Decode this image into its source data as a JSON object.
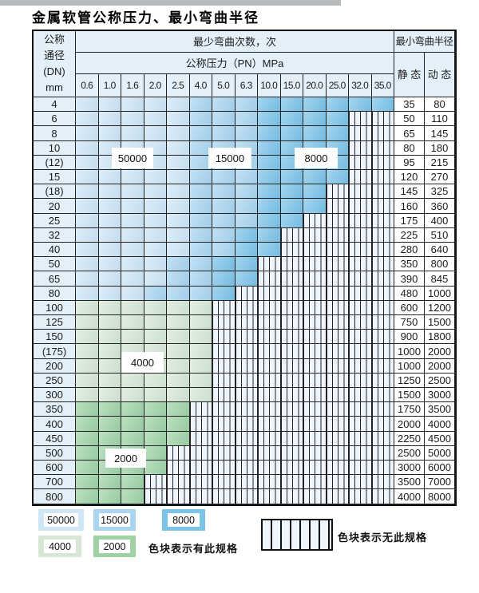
{
  "title": "金属软管公称压力、最小弯曲半径",
  "header": {
    "dn_lines": [
      "公称",
      "通径",
      "(DN)",
      "mm"
    ],
    "bend_cycles": "最少弯曲次数，次",
    "pressure": "公称压力（PN）MPa",
    "min_radius": "最小弯曲半径",
    "static_label": "静 态",
    "dynamic_label": "动 态",
    "pressure_columns": [
      "0.6",
      "1.0",
      "1.6",
      "2.0",
      "2.5",
      "4.0",
      "5.0",
      "6.3",
      "10.0",
      "15.0",
      "20.0",
      "25.0",
      "32.0",
      "35.0"
    ]
  },
  "zone_legend_map": {
    "A": "50000",
    "B": "15000",
    "C": "8000",
    "D": "4000",
    "E": "2000",
    "X": "无此规格"
  },
  "overlays": {
    "b50000": "50000",
    "b15000": "15000",
    "b8000": "8000",
    "b4000": "4000",
    "b2000": "2000"
  },
  "table": {
    "rows": [
      {
        "dn": "4",
        "cells": "AAAAABBBCCCCCC",
        "static": "35",
        "dynamic": "80"
      },
      {
        "dn": "6",
        "cells": "AAAAABBBCCCCXX",
        "static": "50",
        "dynamic": "110"
      },
      {
        "dn": "8",
        "cells": "AAAAABBBCCCCXX",
        "static": "65",
        "dynamic": "145"
      },
      {
        "dn": "10",
        "cells": "AAAAABBBCCCCXX",
        "static": "80",
        "dynamic": "180"
      },
      {
        "dn": "(12)",
        "cells": "AAAAABBBCCCCXX",
        "static": "95",
        "dynamic": "215"
      },
      {
        "dn": "15",
        "cells": "AAAAABBBCCCCXX",
        "static": "120",
        "dynamic": "270"
      },
      {
        "dn": "(18)",
        "cells": "AAAAABBBCCCXXX",
        "static": "145",
        "dynamic": "325"
      },
      {
        "dn": "20",
        "cells": "AAAAABBBCCCXXX",
        "static": "160",
        "dynamic": "360"
      },
      {
        "dn": "25",
        "cells": "AAAAABBBCCXXXX",
        "static": "175",
        "dynamic": "400"
      },
      {
        "dn": "32",
        "cells": "AAAAABBCCXXXXX",
        "static": "225",
        "dynamic": "510"
      },
      {
        "dn": "40",
        "cells": "AAAAABBCCXXXXX",
        "static": "280",
        "dynamic": "640"
      },
      {
        "dn": "50",
        "cells": "AAAABBCCXXXXXX",
        "static": "350",
        "dynamic": "800"
      },
      {
        "dn": "65",
        "cells": "AAAABBCCXXXXXX",
        "static": "390",
        "dynamic": "845"
      },
      {
        "dn": "80",
        "cells": "AAABBBCXXXXXXX",
        "static": "480",
        "dynamic": "1000"
      },
      {
        "dn": "100",
        "cells": "DDDDDDXXXXXXXX",
        "static": "600",
        "dynamic": "1200"
      },
      {
        "dn": "125",
        "cells": "DDDDDDXXXXXXXX",
        "static": "750",
        "dynamic": "1500"
      },
      {
        "dn": "150",
        "cells": "DDDDDDXXXXXXXX",
        "static": "900",
        "dynamic": "1800"
      },
      {
        "dn": "(175)",
        "cells": "DDDDDDXXXXXXXX",
        "static": "1000",
        "dynamic": "2000"
      },
      {
        "dn": "200",
        "cells": "DDDDDDXXXXXXXX",
        "static": "1000",
        "dynamic": "2000"
      },
      {
        "dn": "250",
        "cells": "DDDDDDXXXXXXXX",
        "static": "1250",
        "dynamic": "2500"
      },
      {
        "dn": "300",
        "cells": "DDDDDDXXXXXXXX",
        "static": "1500",
        "dynamic": "3000"
      },
      {
        "dn": "350",
        "cells": "EEEEEXXXXXXXXX",
        "static": "1750",
        "dynamic": "3500"
      },
      {
        "dn": "400",
        "cells": "EEEEEXXXXXXXXX",
        "static": "2000",
        "dynamic": "4000"
      },
      {
        "dn": "450",
        "cells": "EEEEEXXXXXXXXX",
        "static": "2250",
        "dynamic": "4500"
      },
      {
        "dn": "500",
        "cells": "EEEEXXXXXXXXXX",
        "static": "2500",
        "dynamic": "5000"
      },
      {
        "dn": "600",
        "cells": "EEEEXXXXXXXXXX",
        "static": "3000",
        "dynamic": "6000"
      },
      {
        "dn": "700",
        "cells": "EEEXXXXXXXXXXX",
        "static": "3500",
        "dynamic": "7000"
      },
      {
        "dn": "800",
        "cells": "EEEXXXXXXXXXXX",
        "static": "4000",
        "dynamic": "8000"
      }
    ]
  },
  "legend": {
    "sw50000": "50000",
    "sw15000": "15000",
    "sw8000": "8000",
    "sw4000": "4000",
    "sw2000": "2000",
    "has_spec_text": "色块表示有此规格",
    "no_spec_text": "色块表示无此规格"
  },
  "colors": {
    "c50000": "#cfe6f6",
    "c15000": "#a9d5f0",
    "c8000": "#7cc3e8",
    "c4000": "#d6e8d4",
    "c2000": "#9fd3a6",
    "stripebg": "#eef5fc",
    "header": "#e4f0f9"
  }
}
